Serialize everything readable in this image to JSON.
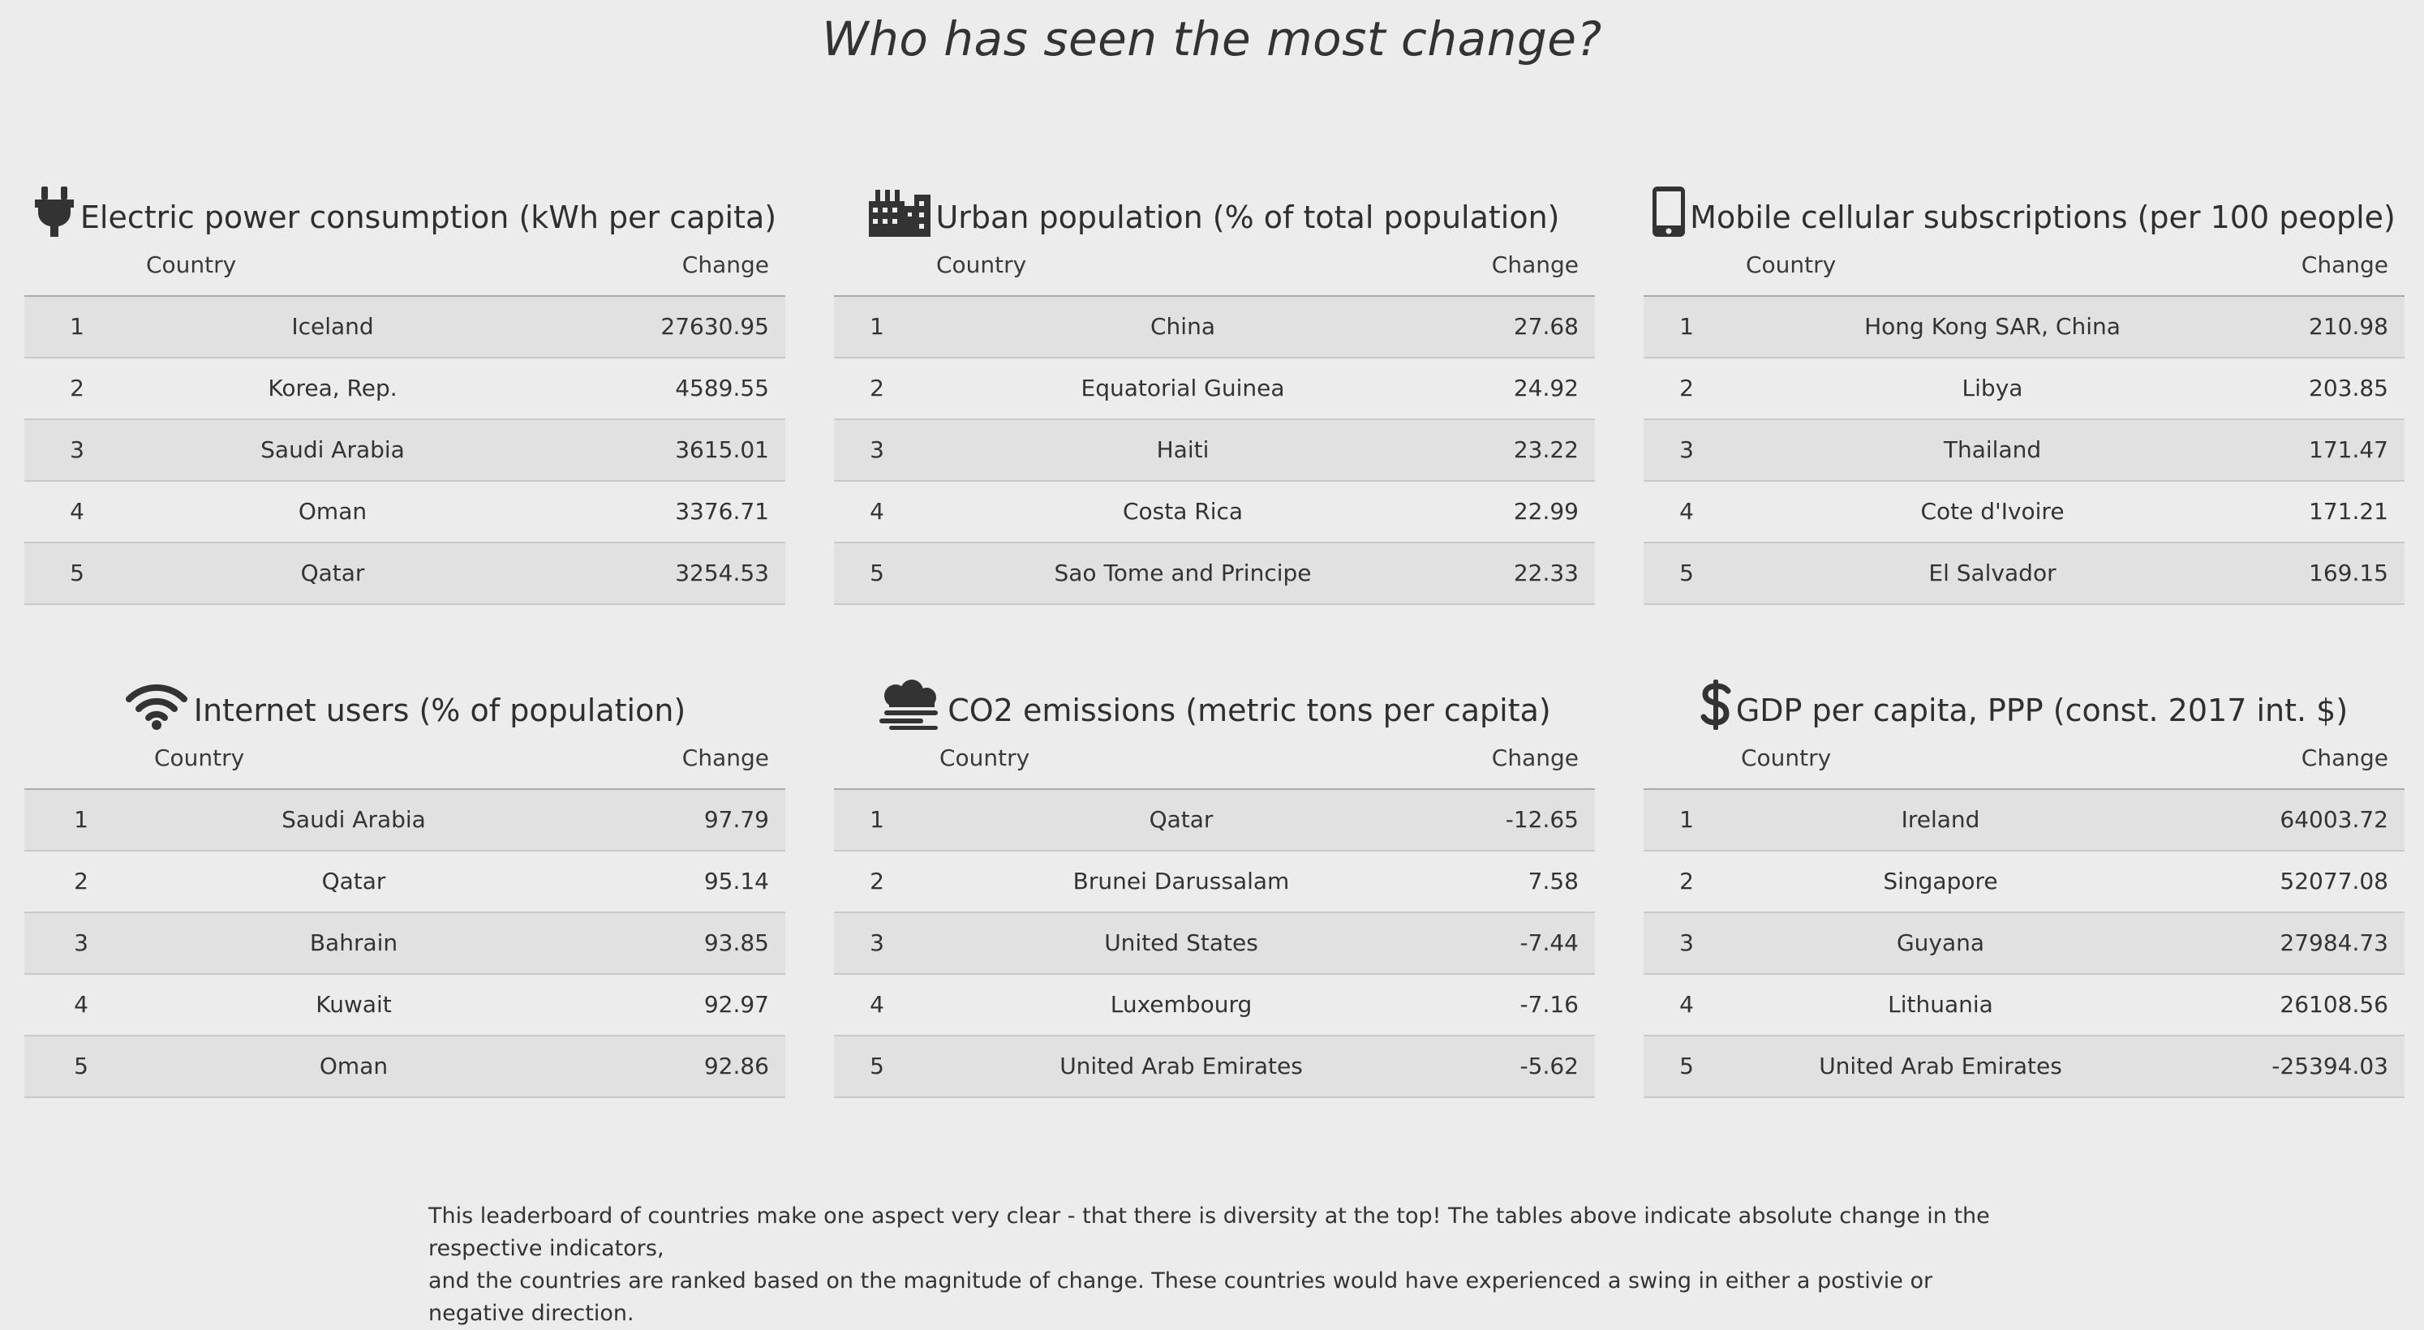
{
  "page": {
    "title": "Who has seen the most change?"
  },
  "columns": {
    "country": "Country",
    "change": "Change"
  },
  "panels": [
    {
      "icon": "plug-icon",
      "title": "Electric power consumption (kWh per capita)",
      "rows": [
        {
          "rank": "1",
          "country": "Iceland",
          "change": "27630.95"
        },
        {
          "rank": "2",
          "country": "Korea, Rep.",
          "change": "4589.55"
        },
        {
          "rank": "3",
          "country": "Saudi Arabia",
          "change": "3615.01"
        },
        {
          "rank": "4",
          "country": "Oman",
          "change": "3376.71"
        },
        {
          "rank": "5",
          "country": "Qatar",
          "change": "3254.53"
        }
      ]
    },
    {
      "icon": "city-icon",
      "title": "Urban population (% of total population)",
      "rows": [
        {
          "rank": "1",
          "country": "China",
          "change": "27.68"
        },
        {
          "rank": "2",
          "country": "Equatorial Guinea",
          "change": "24.92"
        },
        {
          "rank": "3",
          "country": "Haiti",
          "change": "23.22"
        },
        {
          "rank": "4",
          "country": "Costa Rica",
          "change": "22.99"
        },
        {
          "rank": "5",
          "country": "Sao Tome and Principe",
          "change": "22.33"
        }
      ]
    },
    {
      "icon": "mobile-phone-icon",
      "title": "Mobile cellular subscriptions (per 100 people)",
      "rows": [
        {
          "rank": "1",
          "country": "Hong Kong SAR, China",
          "change": "210.98"
        },
        {
          "rank": "2",
          "country": "Libya",
          "change": "203.85"
        },
        {
          "rank": "3",
          "country": "Thailand",
          "change": "171.47"
        },
        {
          "rank": "4",
          "country": "Cote d'Ivoire",
          "change": "171.21"
        },
        {
          "rank": "5",
          "country": "El Salvador",
          "change": "169.15"
        }
      ]
    },
    {
      "icon": "wifi-icon",
      "title": "Internet users (% of population)",
      "rows": [
        {
          "rank": "1",
          "country": "Saudi Arabia",
          "change": "97.79"
        },
        {
          "rank": "2",
          "country": "Qatar",
          "change": "95.14"
        },
        {
          "rank": "3",
          "country": "Bahrain",
          "change": "93.85"
        },
        {
          "rank": "4",
          "country": "Kuwait",
          "change": "92.97"
        },
        {
          "rank": "5",
          "country": "Oman",
          "change": "92.86"
        }
      ]
    },
    {
      "icon": "smog-icon",
      "title": "CO2 emissions (metric tons per capita)",
      "rows": [
        {
          "rank": "1",
          "country": "Qatar",
          "change": "-12.65"
        },
        {
          "rank": "2",
          "country": "Brunei Darussalam",
          "change": "7.58"
        },
        {
          "rank": "3",
          "country": "United States",
          "change": "-7.44"
        },
        {
          "rank": "4",
          "country": "Luxembourg",
          "change": "-7.16"
        },
        {
          "rank": "5",
          "country": "United Arab Emirates",
          "change": "-5.62"
        }
      ]
    },
    {
      "icon": "dollar-sign-icon",
      "title": "GDP per capita, PPP (const. 2017 int. $)",
      "rows": [
        {
          "rank": "1",
          "country": "Ireland",
          "change": "64003.72"
        },
        {
          "rank": "2",
          "country": "Singapore",
          "change": "52077.08"
        },
        {
          "rank": "3",
          "country": "Guyana",
          "change": "27984.73"
        },
        {
          "rank": "4",
          "country": "Lithuania",
          "change": "26108.56"
        },
        {
          "rank": "5",
          "country": "United Arab Emirates",
          "change": "-25394.03"
        }
      ]
    }
  ],
  "footer": {
    "line1": "This leaderboard of countries make one aspect very clear - that there is diversity at the top! The tables above indicate absolute change in the respective indicators,",
    "line2": "and the countries are ranked based on the magnitude of change. These countries would have experienced a swing in either a postivie or negative direction."
  }
}
